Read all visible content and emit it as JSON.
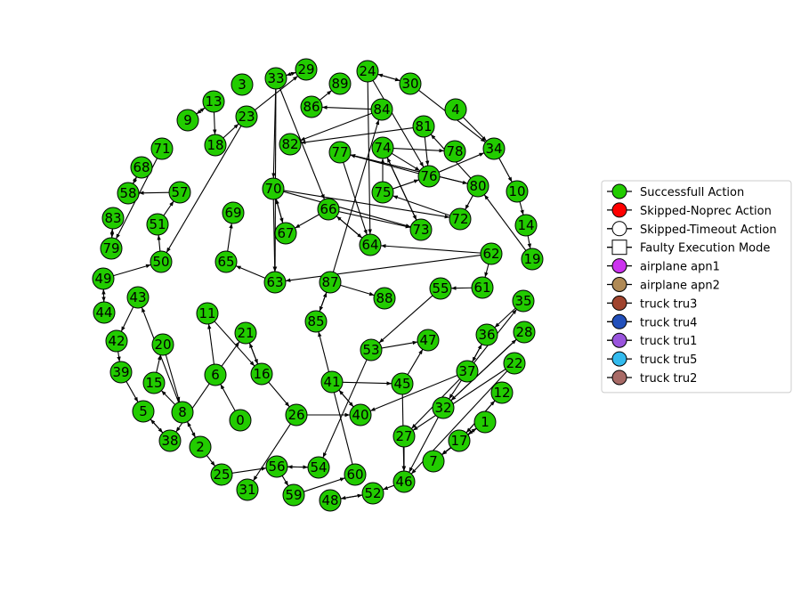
{
  "graph": {
    "nodes": [
      {
        "id": "0",
        "label": "0"
      },
      {
        "id": "1",
        "label": "1"
      },
      {
        "id": "2",
        "label": "2"
      },
      {
        "id": "3",
        "label": "3"
      },
      {
        "id": "4",
        "label": "4"
      },
      {
        "id": "5",
        "label": "5"
      },
      {
        "id": "6",
        "label": "6"
      },
      {
        "id": "7",
        "label": "7"
      },
      {
        "id": "8",
        "label": "8"
      },
      {
        "id": "9",
        "label": "9"
      },
      {
        "id": "10",
        "label": "10"
      },
      {
        "id": "11",
        "label": "11"
      },
      {
        "id": "12",
        "label": "12"
      },
      {
        "id": "13",
        "label": "13"
      },
      {
        "id": "14",
        "label": "14"
      },
      {
        "id": "15",
        "label": "15"
      },
      {
        "id": "16",
        "label": "16"
      },
      {
        "id": "17",
        "label": "17"
      },
      {
        "id": "18",
        "label": "18"
      },
      {
        "id": "19",
        "label": "19"
      },
      {
        "id": "20",
        "label": "20"
      },
      {
        "id": "21",
        "label": "21"
      },
      {
        "id": "22",
        "label": "22"
      },
      {
        "id": "23",
        "label": "23"
      },
      {
        "id": "24",
        "label": "24"
      },
      {
        "id": "25",
        "label": "25"
      },
      {
        "id": "26",
        "label": "26"
      },
      {
        "id": "27",
        "label": "27"
      },
      {
        "id": "28",
        "label": "28"
      },
      {
        "id": "29",
        "label": "29"
      },
      {
        "id": "30",
        "label": "30"
      },
      {
        "id": "31",
        "label": "31"
      },
      {
        "id": "32",
        "label": "32"
      },
      {
        "id": "33",
        "label": "33"
      },
      {
        "id": "34",
        "label": "34"
      },
      {
        "id": "35",
        "label": "35"
      },
      {
        "id": "36",
        "label": "36"
      },
      {
        "id": "37",
        "label": "37"
      },
      {
        "id": "38",
        "label": "38"
      },
      {
        "id": "39",
        "label": "39"
      },
      {
        "id": "40",
        "label": "40"
      },
      {
        "id": "41",
        "label": "41"
      },
      {
        "id": "42",
        "label": "42"
      },
      {
        "id": "43",
        "label": "43"
      },
      {
        "id": "44",
        "label": "44"
      },
      {
        "id": "45",
        "label": "45"
      },
      {
        "id": "46",
        "label": "46"
      },
      {
        "id": "47",
        "label": "47"
      },
      {
        "id": "48",
        "label": "48"
      },
      {
        "id": "49",
        "label": "49"
      },
      {
        "id": "50",
        "label": "50"
      },
      {
        "id": "51",
        "label": "51"
      },
      {
        "id": "52",
        "label": "52"
      },
      {
        "id": "53",
        "label": "53"
      },
      {
        "id": "54",
        "label": "54"
      },
      {
        "id": "55",
        "label": "55"
      },
      {
        "id": "56",
        "label": "56"
      },
      {
        "id": "57",
        "label": "57"
      },
      {
        "id": "58",
        "label": "58"
      },
      {
        "id": "59",
        "label": "59"
      },
      {
        "id": "60",
        "label": "60"
      },
      {
        "id": "61",
        "label": "61"
      },
      {
        "id": "62",
        "label": "62"
      },
      {
        "id": "63",
        "label": "63"
      },
      {
        "id": "64",
        "label": "64"
      },
      {
        "id": "65",
        "label": "65"
      },
      {
        "id": "66",
        "label": "66"
      },
      {
        "id": "67",
        "label": "67"
      },
      {
        "id": "68",
        "label": "68"
      },
      {
        "id": "69",
        "label": "69"
      },
      {
        "id": "70",
        "label": "70"
      },
      {
        "id": "71",
        "label": "71"
      },
      {
        "id": "72",
        "label": "72"
      },
      {
        "id": "73",
        "label": "73"
      },
      {
        "id": "74",
        "label": "74"
      },
      {
        "id": "75",
        "label": "75"
      },
      {
        "id": "76",
        "label": "76"
      },
      {
        "id": "77",
        "label": "77"
      },
      {
        "id": "78",
        "label": "78"
      },
      {
        "id": "79",
        "label": "79"
      },
      {
        "id": "80",
        "label": "80"
      },
      {
        "id": "81",
        "label": "81"
      },
      {
        "id": "82",
        "label": "82"
      },
      {
        "id": "83",
        "label": "83"
      },
      {
        "id": "84",
        "label": "84"
      },
      {
        "id": "85",
        "label": "85"
      },
      {
        "id": "86",
        "label": "86"
      },
      {
        "id": "87",
        "label": "87"
      },
      {
        "id": "88",
        "label": "88"
      },
      {
        "id": "89",
        "label": "89"
      }
    ],
    "edges": [
      [
        "0",
        "6"
      ],
      [
        "6",
        "11"
      ],
      [
        "6",
        "21"
      ],
      [
        "6",
        "38"
      ],
      [
        "8",
        "15"
      ],
      [
        "15",
        "20"
      ],
      [
        "8",
        "43"
      ],
      [
        "5",
        "38"
      ],
      [
        "38",
        "5"
      ],
      [
        "39",
        "5"
      ],
      [
        "42",
        "39"
      ],
      [
        "43",
        "42"
      ],
      [
        "44",
        "49"
      ],
      [
        "49",
        "44"
      ],
      [
        "49",
        "50"
      ],
      [
        "50",
        "51"
      ],
      [
        "51",
        "57"
      ],
      [
        "57",
        "58"
      ],
      [
        "58",
        "68"
      ],
      [
        "68",
        "58"
      ],
      [
        "71",
        "79"
      ],
      [
        "79",
        "83"
      ],
      [
        "83",
        "79"
      ],
      [
        "13",
        "9"
      ],
      [
        "9",
        "13"
      ],
      [
        "13",
        "18"
      ],
      [
        "18",
        "23"
      ],
      [
        "23",
        "29"
      ],
      [
        "23",
        "50"
      ],
      [
        "33",
        "29"
      ],
      [
        "29",
        "33"
      ],
      [
        "33",
        "70"
      ],
      [
        "33",
        "63"
      ],
      [
        "33",
        "66"
      ],
      [
        "70",
        "67"
      ],
      [
        "67",
        "70"
      ],
      [
        "70",
        "72"
      ],
      [
        "70",
        "73"
      ],
      [
        "70",
        "63"
      ],
      [
        "63",
        "65"
      ],
      [
        "65",
        "69"
      ],
      [
        "66",
        "67"
      ],
      [
        "66",
        "73"
      ],
      [
        "66",
        "64"
      ],
      [
        "64",
        "66"
      ],
      [
        "62",
        "64"
      ],
      [
        "62",
        "63"
      ],
      [
        "62",
        "61"
      ],
      [
        "61",
        "55"
      ],
      [
        "55",
        "53"
      ],
      [
        "53",
        "47"
      ],
      [
        "53",
        "54"
      ],
      [
        "45",
        "47"
      ],
      [
        "45",
        "46"
      ],
      [
        "41",
        "40"
      ],
      [
        "41",
        "45"
      ],
      [
        "26",
        "40"
      ],
      [
        "26",
        "31"
      ],
      [
        "40",
        "41"
      ],
      [
        "56",
        "54"
      ],
      [
        "54",
        "56"
      ],
      [
        "56",
        "59"
      ],
      [
        "59",
        "60"
      ],
      [
        "60",
        "85"
      ],
      [
        "85",
        "87"
      ],
      [
        "87",
        "85"
      ],
      [
        "87",
        "88"
      ],
      [
        "87",
        "84"
      ],
      [
        "84",
        "86"
      ],
      [
        "86",
        "89"
      ],
      [
        "84",
        "82"
      ],
      [
        "81",
        "82"
      ],
      [
        "81",
        "76"
      ],
      [
        "76",
        "77"
      ],
      [
        "77",
        "80"
      ],
      [
        "80",
        "77"
      ],
      [
        "74",
        "78"
      ],
      [
        "74",
        "76"
      ],
      [
        "74",
        "73"
      ],
      [
        "73",
        "74"
      ],
      [
        "75",
        "76"
      ],
      [
        "75",
        "74"
      ],
      [
        "72",
        "75"
      ],
      [
        "80",
        "72"
      ],
      [
        "80",
        "81"
      ],
      [
        "76",
        "34"
      ],
      [
        "4",
        "34"
      ],
      [
        "34",
        "10"
      ],
      [
        "10",
        "14"
      ],
      [
        "14",
        "19"
      ],
      [
        "19",
        "80"
      ],
      [
        "30",
        "24"
      ],
      [
        "24",
        "30"
      ],
      [
        "30",
        "34"
      ],
      [
        "24",
        "76"
      ],
      [
        "24",
        "64"
      ],
      [
        "77",
        "64"
      ],
      [
        "2",
        "8"
      ],
      [
        "8",
        "2"
      ],
      [
        "2",
        "25"
      ],
      [
        "25",
        "56"
      ],
      [
        "20",
        "8"
      ],
      [
        "21",
        "16"
      ],
      [
        "16",
        "21"
      ],
      [
        "11",
        "16"
      ],
      [
        "16",
        "26"
      ],
      [
        "37",
        "36"
      ],
      [
        "36",
        "37"
      ],
      [
        "37",
        "35"
      ],
      [
        "35",
        "36"
      ],
      [
        "37",
        "32"
      ],
      [
        "37",
        "27"
      ],
      [
        "37",
        "40"
      ],
      [
        "28",
        "32"
      ],
      [
        "32",
        "28"
      ],
      [
        "22",
        "27"
      ],
      [
        "22",
        "46"
      ],
      [
        "12",
        "17"
      ],
      [
        "17",
        "12"
      ],
      [
        "17",
        "1"
      ],
      [
        "1",
        "17"
      ],
      [
        "1",
        "7"
      ],
      [
        "17",
        "7"
      ],
      [
        "27",
        "46"
      ],
      [
        "46",
        "52"
      ],
      [
        "52",
        "48"
      ],
      [
        "48",
        "52"
      ],
      [
        "32",
        "46"
      ]
    ]
  },
  "legend": {
    "items": [
      {
        "label": "Successfull Action",
        "shape": "circle",
        "color": "#22cc00"
      },
      {
        "label": "Skipped-Noprec Action",
        "shape": "circle",
        "color": "#ff0000"
      },
      {
        "label": "Skipped-Timeout Action",
        "shape": "circle",
        "color": "#ffffff"
      },
      {
        "label": "Faulty Execution Mode",
        "shape": "square",
        "color": "#ffffff"
      },
      {
        "label": "airplane apn1",
        "shape": "circle",
        "color": "#cc33ee"
      },
      {
        "label": "airplane apn2",
        "shape": "circle",
        "color": "#b08a55"
      },
      {
        "label": "truck tru3",
        "shape": "circle",
        "color": "#a0442e"
      },
      {
        "label": "truck tru4",
        "shape": "circle",
        "color": "#2250bb"
      },
      {
        "label": "truck tru1",
        "shape": "circle",
        "color": "#9a55dd"
      },
      {
        "label": "truck tru5",
        "shape": "circle",
        "color": "#33bbee"
      },
      {
        "label": "truck tru2",
        "shape": "circle",
        "color": "#a86a66"
      }
    ]
  },
  "style": {
    "node_fill": "#22cc00",
    "node_stroke": "#000000",
    "edge_color": "#000000"
  }
}
